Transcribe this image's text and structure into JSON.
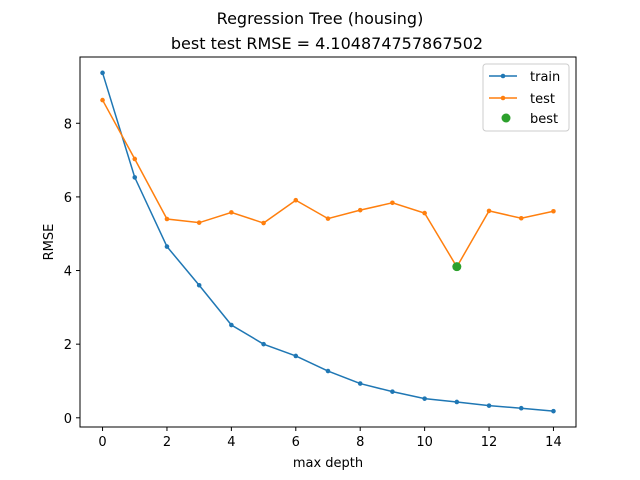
{
  "chart_data": {
    "type": "line",
    "title": "Regression Tree (housing)",
    "subtitle": "best test RMSE = 4.104874757867502",
    "xlabel": "max depth",
    "ylabel": "RMSE",
    "xlim": [
      -0.7,
      14.7
    ],
    "ylim": [
      -0.25,
      9.8
    ],
    "x_ticks": [
      0,
      2,
      4,
      6,
      8,
      10,
      12,
      14
    ],
    "y_ticks": [
      0,
      2,
      4,
      6,
      8
    ],
    "grid": false,
    "legend_position": "top-right",
    "x": [
      0,
      1,
      2,
      3,
      4,
      5,
      6,
      7,
      8,
      9,
      10,
      11,
      12,
      13,
      14
    ],
    "series": [
      {
        "name": "train",
        "color": "#1f77b4",
        "values": [
          9.37,
          6.53,
          4.65,
          3.6,
          2.52,
          2.0,
          1.68,
          1.27,
          0.93,
          0.71,
          0.52,
          0.43,
          0.33,
          0.26,
          0.18
        ]
      },
      {
        "name": "test",
        "color": "#ff7f0e",
        "values": [
          8.63,
          7.03,
          5.4,
          5.3,
          5.58,
          5.29,
          5.91,
          5.41,
          5.64,
          5.84,
          5.56,
          4.1,
          5.62,
          5.42,
          5.61
        ]
      },
      {
        "name": "best",
        "color": "#2ca02c",
        "x": 11,
        "value": 4.104874757867502
      }
    ]
  }
}
